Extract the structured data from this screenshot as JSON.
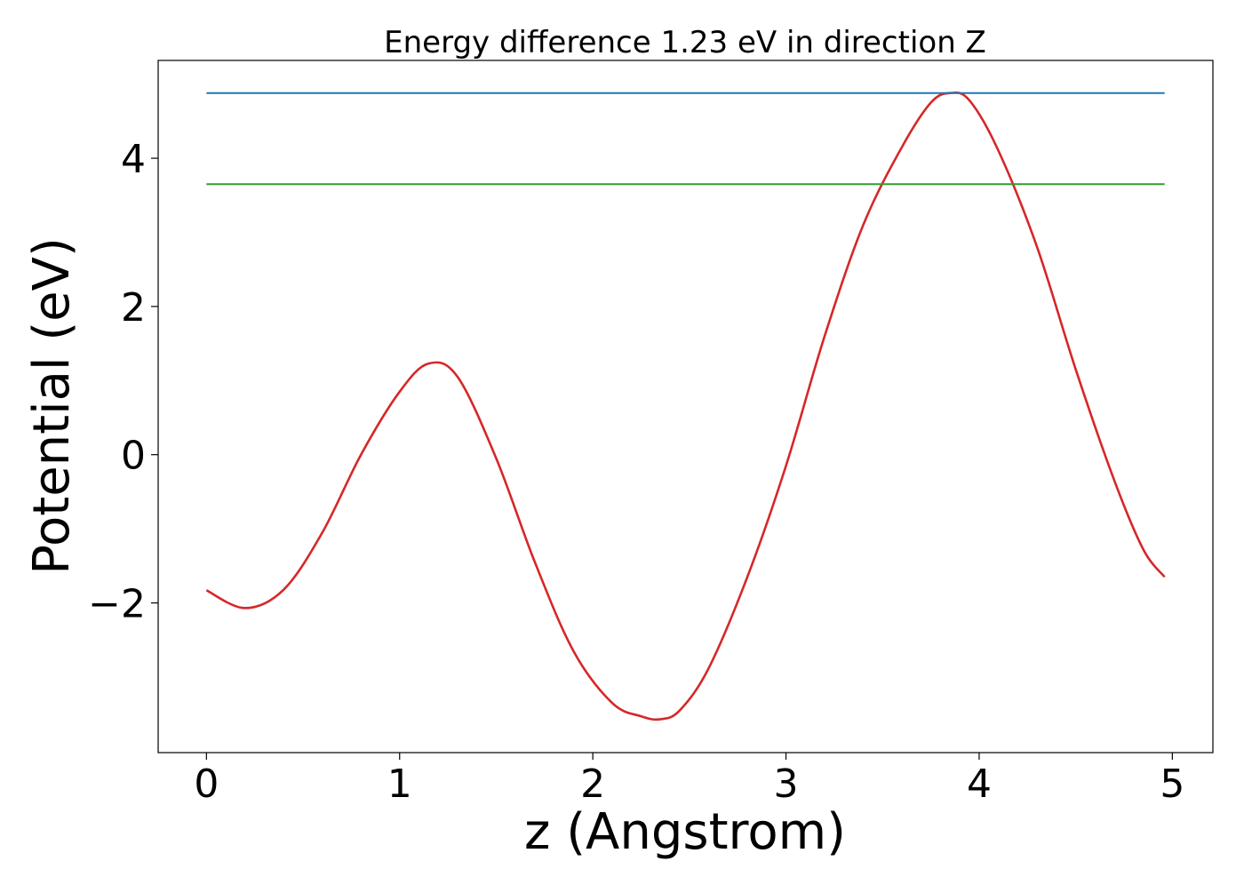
{
  "chart_data": {
    "type": "line",
    "title": "Energy difference 1.23 eV in direction Z",
    "xlabel": "z (Angstrom)",
    "ylabel": "Potential (eV)",
    "xlim": [
      -0.25,
      5.21
    ],
    "ylim": [
      -4.02,
      5.32
    ],
    "xticks": [
      0,
      1,
      2,
      3,
      4,
      5
    ],
    "xtick_labels": [
      "0",
      "1",
      "2",
      "3",
      "4",
      "5"
    ],
    "yticks": [
      -2,
      0,
      2,
      4
    ],
    "ytick_labels": [
      "−2",
      "0",
      "2",
      "4"
    ],
    "grid": false,
    "series": [
      {
        "color": "#d62728",
        "x": [
          0.0,
          0.2,
          0.4,
          0.6,
          0.8,
          1.0,
          1.15,
          1.3,
          1.5,
          1.7,
          1.9,
          2.1,
          2.25,
          2.35,
          2.45,
          2.6,
          2.8,
          3.0,
          3.2,
          3.4,
          3.6,
          3.75,
          3.85,
          3.95,
          4.1,
          4.3,
          4.5,
          4.7,
          4.85,
          4.96
        ],
        "y": [
          -1.83,
          -2.07,
          -1.82,
          -1.05,
          0.0,
          0.85,
          1.23,
          1.05,
          -0.05,
          -1.45,
          -2.65,
          -3.35,
          -3.53,
          -3.57,
          -3.45,
          -2.88,
          -1.65,
          -0.15,
          1.6,
          3.1,
          4.15,
          4.75,
          4.88,
          4.78,
          4.1,
          2.8,
          1.15,
          -0.35,
          -1.28,
          -1.65
        ]
      },
      {
        "color": "#1f77b4",
        "x": [
          0.0,
          4.96
        ],
        "y": [
          4.88,
          4.88
        ]
      },
      {
        "color": "#2ca02c",
        "x": [
          0.0,
          4.96
        ],
        "y": [
          3.65,
          3.65
        ]
      }
    ]
  }
}
